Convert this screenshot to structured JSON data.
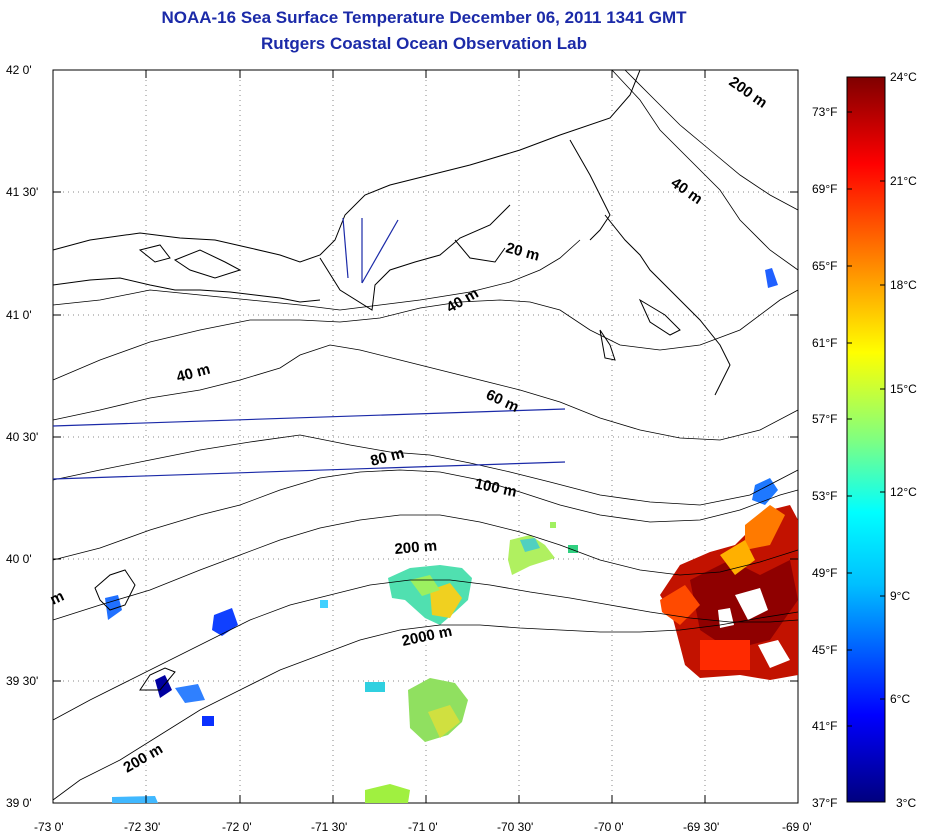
{
  "title": "NOAA-16 Sea Surface Temperature December 06, 2011 1341 GMT",
  "subtitle": "Rutgers Coastal Ocean Observation Lab",
  "lat_labels": [
    "42 0'",
    "41 30'",
    "41 0'",
    "40 30'",
    "40 0'",
    "39 30'",
    "39 0'"
  ],
  "lon_labels": [
    "-73 0'",
    "-72 30'",
    "-72 0'",
    "-71 30'",
    "-71 0'",
    "-70 30'",
    "-70 0'",
    "-69 30'",
    "-69 0'"
  ],
  "fahrenheit_labels": [
    "73°F",
    "69°F",
    "65°F",
    "61°F",
    "57°F",
    "53°F",
    "49°F",
    "45°F",
    "41°F",
    "37°F"
  ],
  "celsius_labels": [
    "24°C",
    "21°C",
    "18°C",
    "15°C",
    "12°C",
    "9°C",
    "6°C",
    "3°C"
  ],
  "contour_labels": [
    "200 m",
    "40 m",
    "20 m",
    "40 m",
    "40 m",
    "60 m",
    "80 m",
    "100 m",
    "200 m",
    "2000 m",
    "200 m",
    "m"
  ],
  "colorbar": {
    "min_c": 3,
    "max_c": 24,
    "colors": [
      "#00007f",
      "#0000ff",
      "#00bfff",
      "#00ffff",
      "#80ff80",
      "#ffff00",
      "#ff8000",
      "#ff0000",
      "#7f0000"
    ]
  },
  "land_color": "#ffffff",
  "map_extent": {
    "lon": [
      -73,
      -69
    ],
    "lat": [
      39,
      42
    ]
  }
}
